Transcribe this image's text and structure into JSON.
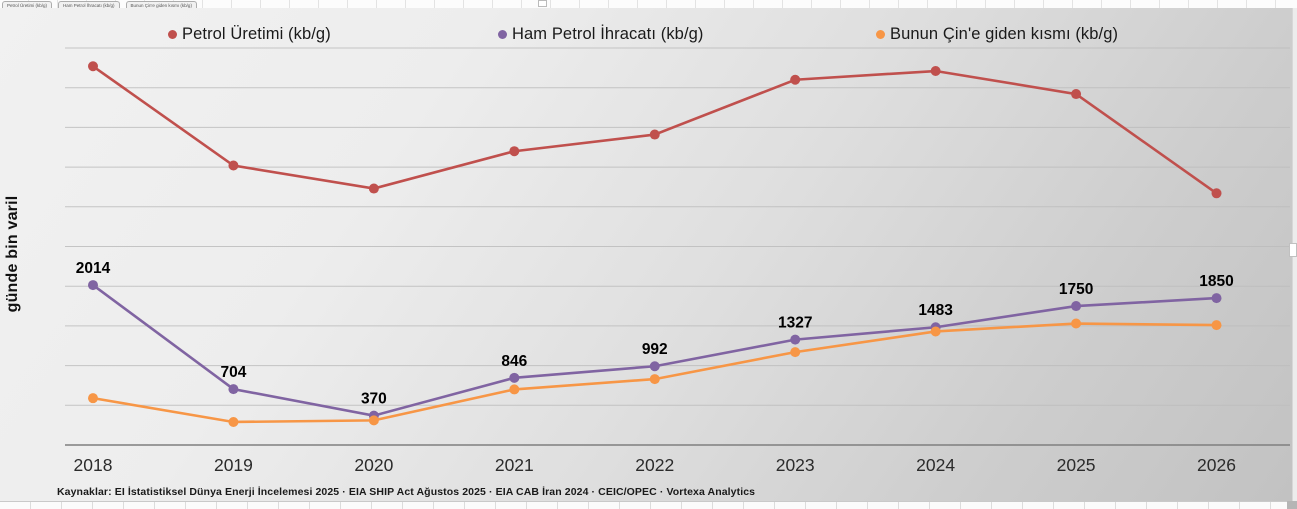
{
  "sheet": {
    "tabs": [
      {
        "label": "Petrol Üretimi (kb/g)"
      },
      {
        "label": "Ham Petrol İhracatı (kb/g)"
      },
      {
        "label": "Bunun Çin'e giden kısmı (kb/g)"
      }
    ]
  },
  "source_note": "Kaynaklar: EI İstatistiksel Dünya Enerji İncelemesi 2025 · EIA SHIP Act Ağustos 2025 · EIA CAB İran 2024 · CEIC/OPEC · Vortexa Analytics",
  "chart_data": {
    "type": "line",
    "title": "",
    "ylabel": "günde bin varil",
    "xlabel": "",
    "ylim": [
      0,
      5000
    ],
    "grid_step": 500,
    "grid": "horizontal",
    "legend_position": "top",
    "categories": [
      "2018",
      "2019",
      "2020",
      "2021",
      "2022",
      "2023",
      "2024",
      "2025",
      "2026"
    ],
    "series": [
      {
        "name": "Petrol Üretimi (kb/g)",
        "color": "#c0504d",
        "values": [
          4770,
          3520,
          3230,
          3700,
          3910,
          4600,
          4710,
          4420,
          3170
        ],
        "values_estimated": true,
        "data_labels": false
      },
      {
        "name": "Ham Petrol İhracatı (kb/g)",
        "color": "#8064a2",
        "values": [
          2014,
          704,
          370,
          846,
          992,
          1327,
          1483,
          1750,
          1850
        ],
        "values_estimated": false,
        "data_labels": true
      },
      {
        "name": "Bunun Çin'e giden kısmı (kb/g)",
        "color": "#f79646",
        "values": [
          590,
          290,
          310,
          700,
          830,
          1170,
          1430,
          1530,
          1510
        ],
        "values_estimated": true,
        "data_labels": false
      }
    ]
  }
}
